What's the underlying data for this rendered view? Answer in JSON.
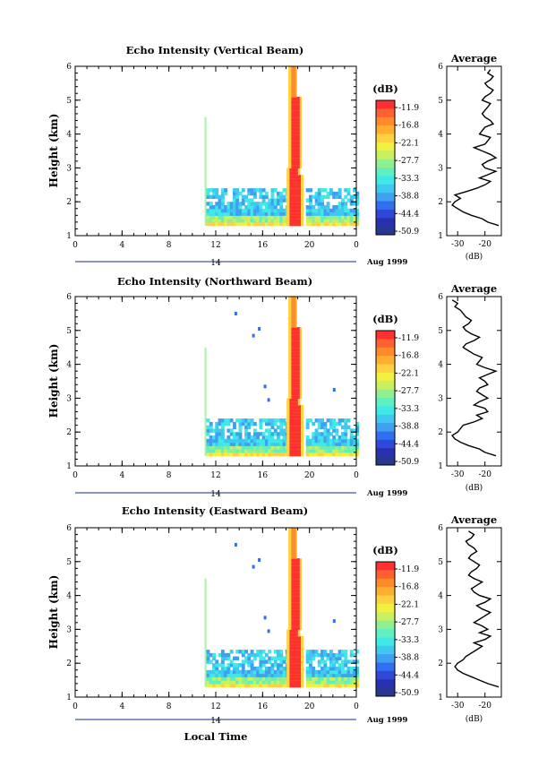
{
  "figure": {
    "local_time_label": "Local Time",
    "date_label": "Aug 1999",
    "day_label": "14",
    "colorbar_unit": "(dB)",
    "avg_title": "Average",
    "avg_xlabel": "(dB)"
  },
  "colorbar": {
    "ticks": [
      "-11.9",
      "-16.8",
      "-22.1",
      "-27.7",
      "-33.3",
      "-38.8",
      "-44.4",
      "-50.9"
    ],
    "colors": [
      "#ff3030",
      "#ff6030",
      "#ff8a2a",
      "#ffae30",
      "#ffd040",
      "#f0f040",
      "#c8f060",
      "#90f090",
      "#60f0c0",
      "#40e8e8",
      "#40c8f0",
      "#40a0f0",
      "#3070f0",
      "#3048d8",
      "#2830b0",
      "#283890"
    ]
  },
  "chart_data": [
    {
      "type": "heatmap",
      "title": "Echo Intensity (Vertical Beam)",
      "ylabel": "Height (km)",
      "xticks": [
        "0",
        "4",
        "8",
        "12",
        "16",
        "20",
        "0"
      ],
      "yticks": [
        "1",
        "2",
        "3",
        "4",
        "5",
        "6"
      ],
      "xlim": [
        0,
        24
      ],
      "ylim": [
        1,
        6
      ],
      "avg_profile": {
        "xticks": [
          "-30",
          "-20"
        ],
        "xlim": [
          -34,
          -14
        ],
        "height": [
          1.3,
          1.4,
          1.5,
          1.6,
          1.7,
          1.8,
          1.9,
          2.0,
          2.1,
          2.2,
          2.3,
          2.4,
          2.5,
          2.6,
          2.7,
          2.8,
          2.9,
          3.0,
          3.1,
          3.2,
          3.3,
          3.4,
          3.5,
          3.6,
          3.7,
          3.8,
          3.9,
          4.0,
          4.1,
          4.2,
          4.3,
          4.4,
          4.5,
          4.6,
          4.7,
          4.8,
          4.9,
          5.0,
          5.1,
          5.2,
          5.3,
          5.4,
          5.5,
          5.6,
          5.7,
          5.8,
          5.9
        ],
        "db": [
          -15,
          -19,
          -21,
          -25,
          -28,
          -30,
          -32,
          -31,
          -29,
          -31,
          -27,
          -23,
          -20,
          -18,
          -22,
          -19,
          -16,
          -20,
          -21,
          -19,
          -16,
          -18,
          -21,
          -24,
          -20,
          -19,
          -18,
          -22,
          -21,
          -20,
          -17,
          -18,
          -20,
          -21,
          -20,
          -19,
          -18,
          -21,
          -20,
          -18,
          -17,
          -19,
          -20,
          -18,
          -17,
          -19,
          -18
        ]
      }
    },
    {
      "type": "heatmap",
      "title": "Echo Intensity (Northward Beam)",
      "ylabel": "Height (km)",
      "xticks": [
        "0",
        "4",
        "8",
        "12",
        "16",
        "20",
        "0"
      ],
      "yticks": [
        "1",
        "2",
        "3",
        "4",
        "5",
        "6"
      ],
      "xlim": [
        0,
        24
      ],
      "ylim": [
        1,
        6
      ],
      "avg_profile": {
        "xticks": [
          "-30",
          "-20"
        ],
        "xlim": [
          -34,
          -14
        ],
        "height": [
          1.3,
          1.4,
          1.5,
          1.6,
          1.7,
          1.8,
          1.9,
          2.0,
          2.1,
          2.2,
          2.3,
          2.4,
          2.5,
          2.6,
          2.7,
          2.8,
          2.9,
          3.0,
          3.1,
          3.2,
          3.3,
          3.4,
          3.5,
          3.6,
          3.7,
          3.8,
          3.9,
          4.0,
          4.1,
          4.2,
          4.3,
          4.4,
          4.5,
          4.6,
          4.7,
          4.8,
          4.9,
          5.0,
          5.1,
          5.2,
          5.3,
          5.4,
          5.5,
          5.6,
          5.7,
          5.8,
          5.9
        ],
        "db": [
          -16,
          -20,
          -22,
          -26,
          -29,
          -31,
          -32,
          -30,
          -29,
          -28,
          -24,
          -21,
          -23,
          -19,
          -20,
          -24,
          -22,
          -19,
          -21,
          -23,
          -22,
          -19,
          -20,
          -22,
          -19,
          -16,
          -20,
          -23,
          -22,
          -21,
          -24,
          -26,
          -28,
          -27,
          -24,
          -22,
          -25,
          -27,
          -28,
          -26,
          -25,
          -27,
          -28,
          -29,
          -31,
          -30,
          -32
        ]
      }
    },
    {
      "type": "heatmap",
      "title": "Echo Intensity (Eastward Beam)",
      "ylabel": "Height (km)",
      "xticks": [
        "0",
        "4",
        "8",
        "12",
        "16",
        "20",
        "0"
      ],
      "yticks": [
        "1",
        "2",
        "3",
        "4",
        "5",
        "6"
      ],
      "xlim": [
        0,
        24
      ],
      "ylim": [
        1,
        6
      ],
      "avg_profile": {
        "xticks": [
          "-30",
          "-20"
        ],
        "xlim": [
          -34,
          -14
        ],
        "height": [
          1.3,
          1.4,
          1.5,
          1.6,
          1.7,
          1.8,
          1.9,
          2.0,
          2.1,
          2.2,
          2.3,
          2.4,
          2.5,
          2.6,
          2.7,
          2.8,
          2.9,
          3.0,
          3.1,
          3.2,
          3.3,
          3.4,
          3.5,
          3.6,
          3.7,
          3.8,
          3.9,
          4.0,
          4.1,
          4.2,
          4.3,
          4.4,
          4.5,
          4.6,
          4.7,
          4.8,
          4.9,
          5.0,
          5.1,
          5.2,
          5.3,
          5.4,
          5.5,
          5.6,
          5.7,
          5.8,
          5.9
        ],
        "db": [
          -15,
          -19,
          -22,
          -25,
          -28,
          -30,
          -31,
          -30,
          -28,
          -27,
          -25,
          -23,
          -21,
          -24,
          -20,
          -18,
          -22,
          -19,
          -21,
          -24,
          -22,
          -20,
          -18,
          -21,
          -23,
          -20,
          -18,
          -22,
          -24,
          -25,
          -23,
          -21,
          -24,
          -26,
          -25,
          -23,
          -22,
          -24,
          -26,
          -25,
          -23,
          -24,
          -26,
          -27,
          -25,
          -24,
          -26
        ]
      }
    }
  ]
}
